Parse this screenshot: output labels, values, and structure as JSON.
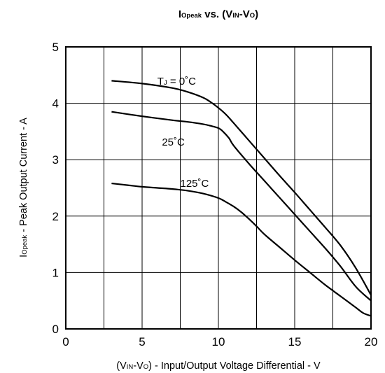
{
  "chart_data": {
    "type": "line",
    "title": {
      "main1": "I",
      "sub1": "Opeak",
      "main2": " vs. (V",
      "sub2": "IN",
      "main3": "-V",
      "sub3": "O",
      "main4": ")"
    },
    "xlabel": {
      "p1": "(V",
      "s1": "IN",
      "p2": "-V",
      "s2": "O",
      "p3": ") - Input/Output Voltage Differential - V"
    },
    "ylabel": {
      "p1": "I",
      "s1": "Opeak",
      "p2": " - Peak Output Current - A"
    },
    "xlim": [
      0,
      20
    ],
    "ylim": [
      0,
      5
    ],
    "xticks": [
      "0",
      "5",
      "10",
      "15",
      "20"
    ],
    "yticks": [
      "0",
      "1",
      "2",
      "3",
      "4",
      "5"
    ],
    "grid": true,
    "series": [
      {
        "name_main": "T",
        "name_sub": "J",
        "name_rest": " = 0˚C",
        "x": [
          3,
          5,
          7,
          8,
          9,
          9.5,
          10,
          10.5,
          11,
          12,
          13,
          14,
          15,
          16,
          17,
          18,
          19,
          20
        ],
        "y": [
          4.4,
          4.35,
          4.27,
          4.2,
          4.1,
          4.02,
          3.92,
          3.8,
          3.65,
          3.34,
          3.03,
          2.72,
          2.42,
          2.11,
          1.8,
          1.48,
          1.08,
          0.6
        ]
      },
      {
        "name_main": "25˚C",
        "name_sub": "",
        "name_rest": "",
        "x": [
          3,
          5,
          7,
          8,
          9,
          9.5,
          10,
          10.3,
          10.7,
          11,
          12,
          13,
          14,
          15,
          16,
          17,
          18,
          19,
          20
        ],
        "y": [
          3.85,
          3.77,
          3.7,
          3.67,
          3.63,
          3.6,
          3.56,
          3.5,
          3.38,
          3.25,
          2.93,
          2.63,
          2.33,
          2.03,
          1.73,
          1.43,
          1.11,
          0.75,
          0.5
        ]
      },
      {
        "name_main": "125˚C",
        "name_sub": "",
        "name_rest": "",
        "x": [
          3,
          4,
          5,
          6,
          7,
          8,
          9,
          10,
          10.5,
          11,
          11.5,
          12,
          12.5,
          13,
          14,
          15,
          16,
          17,
          18,
          19,
          19.5,
          20
        ],
        "y": [
          2.58,
          2.55,
          2.52,
          2.5,
          2.48,
          2.45,
          2.4,
          2.32,
          2.25,
          2.17,
          2.07,
          1.95,
          1.82,
          1.68,
          1.45,
          1.22,
          1.0,
          0.78,
          0.58,
          0.38,
          0.28,
          0.23
        ]
      }
    ]
  }
}
